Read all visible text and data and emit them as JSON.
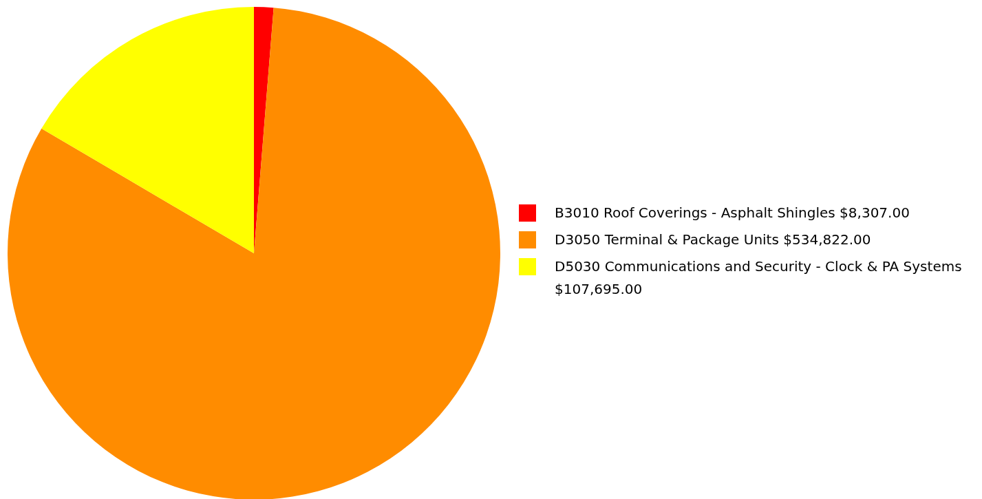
{
  "chart_data": {
    "type": "pie",
    "categories": [
      "B3010 Roof Coverings - Asphalt Shingles",
      "D3050 Terminal & Package Units",
      "D5030 Communications and Security - Clock & PA Systems"
    ],
    "values": [
      8307,
      534822,
      107695
    ],
    "value_labels": [
      "$8,307.00",
      "$534,822.00",
      "$107,695.00"
    ],
    "colors": [
      "#ff0000",
      "#ff8c00",
      "#ffff00"
    ],
    "legend": "right"
  }
}
